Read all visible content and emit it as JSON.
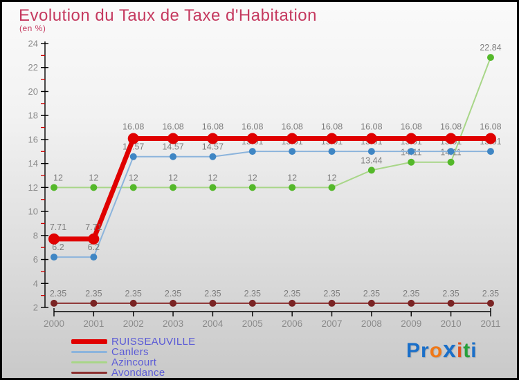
{
  "title": "Evolution du Taux de Taxe d'Habitation",
  "subtitle": "(en %)",
  "chart_data": {
    "type": "line",
    "x": [
      2000,
      2001,
      2002,
      2003,
      2004,
      2005,
      2006,
      2007,
      2008,
      2009,
      2010,
      2011
    ],
    "series": [
      {
        "name": "RUISSEAUVILLE",
        "color": "#e00000",
        "marker_color": "#e00000",
        "line_width": 7,
        "marker_radius": 8,
        "values": [
          7.71,
          7.71,
          16.08,
          16.08,
          16.08,
          16.08,
          16.08,
          16.08,
          16.08,
          16.08,
          16.08,
          16.08
        ]
      },
      {
        "name": "Canlers",
        "color": "#8cb4dc",
        "marker_color": "#3f86c4",
        "line_width": 2,
        "marker_radius": 5,
        "values": [
          6.2,
          6.2,
          14.57,
          14.57,
          14.57,
          15.01,
          15.01,
          15.01,
          15.01,
          15.01,
          15.01,
          15.01
        ]
      },
      {
        "name": "Azincourt",
        "color": "#a8d688",
        "marker_color": "#54b82a",
        "line_width": 2,
        "marker_radius": 5,
        "values": [
          12,
          12,
          12,
          12,
          12,
          12,
          12,
          12,
          13.44,
          14.11,
          14.11,
          22.84
        ]
      },
      {
        "name": "Avondance",
        "color": "#8b2e2e",
        "marker_color": "#7a2424",
        "line_width": 2,
        "marker_radius": 5,
        "values": [
          2.35,
          2.35,
          2.35,
          2.35,
          2.35,
          2.35,
          2.35,
          2.35,
          2.35,
          2.35,
          2.35,
          2.35
        ]
      }
    ],
    "ylim": [
      2,
      24
    ],
    "y_major_step": 2,
    "y_minor_step": 1,
    "grid": false,
    "value_labels": true,
    "legend_position": "bottom-left",
    "axis_colors": {
      "axis": "#000000",
      "minor_tick": "#cc0000",
      "tick_label": "#8a8a8a",
      "value_label": "#7d7d7d"
    }
  },
  "logo": {
    "name": "Proxiti",
    "letters": [
      {
        "ch": "P",
        "color": "#1a6fc9"
      },
      {
        "ch": "r",
        "color": "#1a6fc9"
      },
      {
        "ch": "o",
        "color": "#f07818"
      },
      {
        "ch": "x",
        "color": "#1a6fc9"
      },
      {
        "ch": "i",
        "color": "#e2531d"
      },
      {
        "ch": "t",
        "color": "#27a03c"
      },
      {
        "ch": "i",
        "color": "#1a6fc9"
      }
    ]
  }
}
